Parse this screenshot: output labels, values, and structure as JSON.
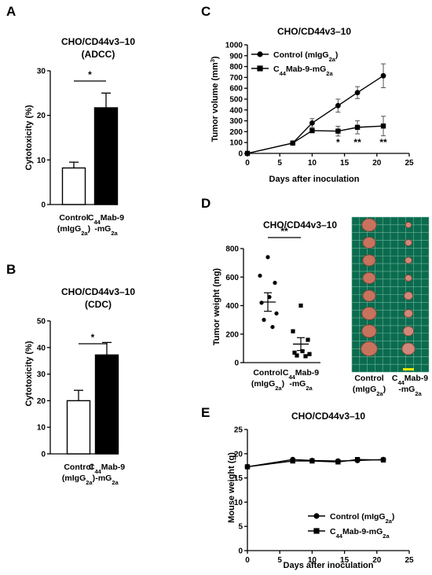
{
  "panels": {
    "A": "A",
    "B": "B",
    "C": "C",
    "D": "D",
    "E": "E"
  },
  "chart_data": [
    {
      "id": "A",
      "type": "bar",
      "title": "CHO/CD44v3–10",
      "subtitle": "(ADCC)",
      "ylabel": "Cytotoxicity (%)",
      "ylim": [
        0,
        30
      ],
      "yticks": [
        0,
        10,
        20,
        30
      ],
      "categories": [
        {
          "l1": "Control",
          "l2a": "(mIgG",
          "l2s": "2a",
          "l2b": ")"
        },
        {
          "l1a": "C",
          "l1s": "44",
          "l1b": "Mab-9",
          "l2a": "-mG",
          "l2s": "2a",
          "l2b": ""
        }
      ],
      "values": [
        8.2,
        21.7
      ],
      "errors": [
        1.3,
        3.3
      ],
      "fills": [
        "#ffffff",
        "#000000"
      ],
      "significance": "*"
    },
    {
      "id": "B",
      "type": "bar",
      "title": "CHO/CD44v3–10",
      "subtitle": "(CDC)",
      "ylabel": "Cytotoxicity (%)",
      "ylim": [
        0,
        50
      ],
      "yticks": [
        0,
        10,
        20,
        30,
        40,
        50
      ],
      "categories": [
        {
          "l1": "Control",
          "l2a": "(mIgG",
          "l2s": "2a",
          "l2b": ")"
        },
        {
          "l1a": "C",
          "l1s": "44",
          "l1b": "Mab-9",
          "l2a": "-mG",
          "l2s": "2a",
          "l2b": ""
        }
      ],
      "values": [
        20.0,
        37.2
      ],
      "errors": [
        3.9,
        4.7
      ],
      "fills": [
        "#ffffff",
        "#000000"
      ],
      "significance": "*"
    },
    {
      "id": "C",
      "type": "line",
      "title": "CHO/CD44v3–10",
      "xlabel": "Days after inoculation",
      "ylabel": "Tumor volume (mm",
      "ylabel_sup": "3",
      "ylabel_end": ")",
      "xlim": [
        0,
        25
      ],
      "xticks": [
        0,
        5,
        10,
        15,
        20,
        25
      ],
      "ylim": [
        0,
        1000
      ],
      "yticks": [
        0,
        100,
        200,
        300,
        400,
        500,
        600,
        700,
        800,
        900,
        1000
      ],
      "x": [
        0,
        7,
        10,
        14,
        17,
        21
      ],
      "series": [
        {
          "name_a": "Control (mIgG",
          "name_s": "2a",
          "name_b": ")",
          "marker": "circle",
          "values": [
            0,
            95,
            280,
            440,
            560,
            715
          ],
          "errors": [
            0,
            10,
            40,
            60,
            55,
            110
          ]
        },
        {
          "name_a": "C",
          "name_s1": "44",
          "name_b": "Mab-9-mG",
          "name_s2": "2a",
          "marker": "square",
          "values": [
            0,
            95,
            210,
            205,
            240,
            252
          ],
          "errors": [
            0,
            10,
            20,
            45,
            60,
            90
          ]
        }
      ],
      "significance": [
        {
          "x": 14,
          "label": "*"
        },
        {
          "x": 17,
          "label": "**"
        },
        {
          "x": 21,
          "label": "**"
        }
      ]
    },
    {
      "id": "D",
      "type": "scatter",
      "title": "CHO/CD44v3–10",
      "ylabel": "Tumor weight (mg)",
      "ylim": [
        0,
        800
      ],
      "yticks": [
        0,
        200,
        400,
        600,
        800
      ],
      "categories": [
        {
          "l1": "Control",
          "l2a": "(mIgG",
          "l2s": "2a",
          "l2b": ")"
        },
        {
          "l1a": "C",
          "l1s": "44",
          "l1b": "Mab-9",
          "l2a": "-mG",
          "l2s": "2a",
          "l2b": ""
        }
      ],
      "groups": [
        {
          "marker": "circle",
          "points": [
            740,
            610,
            560,
            460,
            420,
            345,
            300,
            250
          ],
          "mean": 425,
          "sem": 65
        },
        {
          "marker": "square",
          "points": [
            400,
            220,
            160,
            80,
            70,
            60,
            50,
            45
          ],
          "mean": 130,
          "sem": 45
        }
      ],
      "significance": "**",
      "photo_labels": [
        {
          "l1": "Control",
          "l2a": "(mIgG",
          "l2s": "2a",
          "l2b": ")"
        },
        {
          "l1a": "C",
          "l1s": "44",
          "l1b": "Mab-9",
          "l2a": "-mG",
          "l2s": "2a",
          "l2b": ""
        }
      ]
    },
    {
      "id": "E",
      "type": "line",
      "title": "CHO/CD44v3–10",
      "xlabel": "Days after inoculation",
      "ylabel": "Mouse weight (g)",
      "xlim": [
        0,
        25
      ],
      "xticks": [
        0,
        5,
        10,
        15,
        20,
        25
      ],
      "ylim": [
        0,
        25
      ],
      "yticks": [
        0,
        5,
        10,
        15,
        20,
        25
      ],
      "x": [
        0,
        7,
        10,
        14,
        17,
        21
      ],
      "series": [
        {
          "name_a": "Control (mIgG",
          "name_s": "2a",
          "name_b": ")",
          "marker": "circle",
          "values": [
            17.3,
            18.8,
            18.6,
            18.5,
            18.6,
            18.8
          ]
        },
        {
          "name_a": "C",
          "name_s1": "44",
          "name_b": "Mab-9-mG",
          "name_s2": "2a",
          "marker": "square",
          "values": [
            17.3,
            18.5,
            18.5,
            18.3,
            18.8,
            18.7
          ]
        }
      ]
    }
  ]
}
